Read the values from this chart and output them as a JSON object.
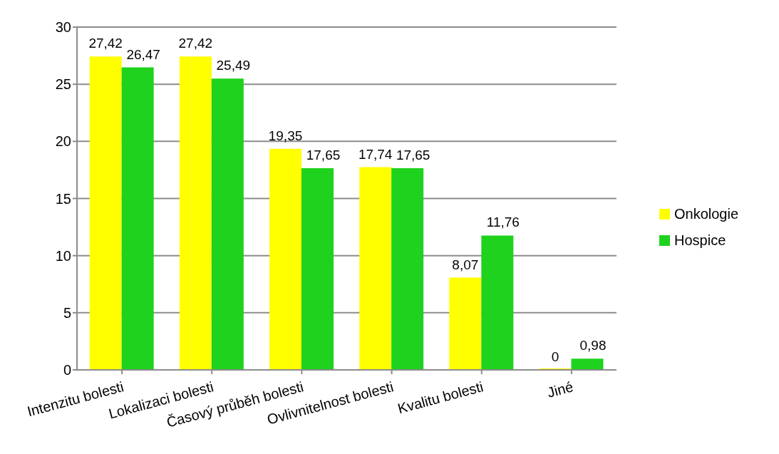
{
  "chart_data": {
    "type": "bar",
    "categories": [
      "Intenzitu bolesti",
      "Lokalizaci bolesti",
      "Časový průběh bolesti",
      "Ovlivnitelnost bolesti",
      "Kvalitu bolesti",
      "Jiné"
    ],
    "series": [
      {
        "name": "Onkologie",
        "color": "#ffff00",
        "values": [
          27.42,
          27.42,
          19.35,
          17.74,
          8.07,
          0
        ],
        "value_labels": [
          "27,42",
          "27,42",
          "19,35",
          "17,74",
          "8,07",
          "0"
        ]
      },
      {
        "name": "Hospice",
        "color": "#1ed21e",
        "values": [
          26.47,
          25.49,
          17.65,
          17.65,
          11.76,
          0.98
        ],
        "value_labels": [
          "26,47",
          "25,49",
          "17,65",
          "17,65",
          "11,76",
          "0,98"
        ]
      }
    ],
    "ylim": [
      0,
      30
    ],
    "yticks": [
      0,
      5,
      10,
      15,
      20,
      25,
      30
    ],
    "grid": "y",
    "legend": "right"
  }
}
